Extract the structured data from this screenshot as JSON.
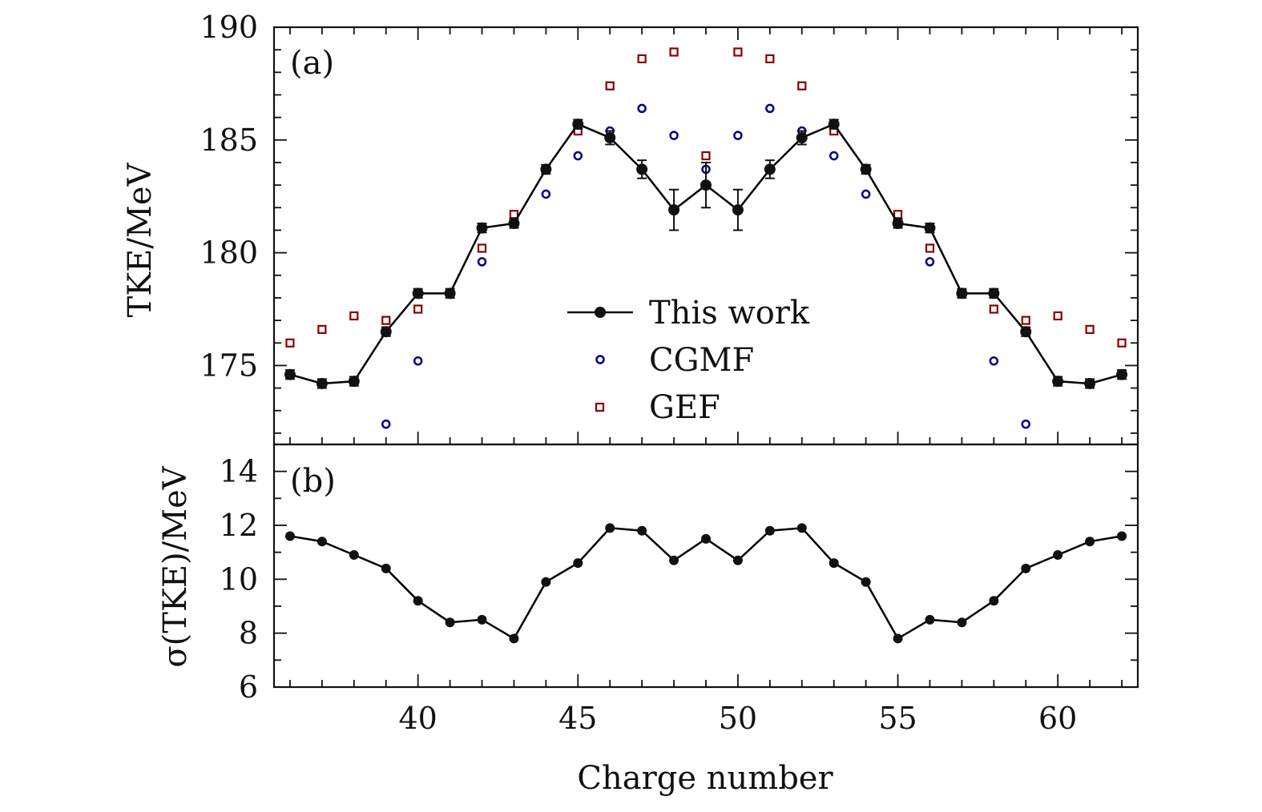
{
  "chart_data": [
    {
      "panel": "(a)",
      "type": "scatter",
      "xlabel": "Charge number",
      "ylabel": "TKE/MeV",
      "xlim": [
        35.5,
        62.5
      ],
      "ylim": [
        171.5,
        190
      ],
      "xticks": [
        40,
        45,
        50,
        55,
        60
      ],
      "xtick_labels": [
        "40",
        "45",
        "50",
        "55",
        "60"
      ],
      "yticks": [
        175,
        180,
        185,
        190
      ],
      "ytick_labels": [
        "175",
        "180",
        "185",
        "190"
      ],
      "legend_position": "center",
      "series": [
        {
          "name": "This work",
          "style": "line-marker",
          "color": "#000000",
          "x": [
            36,
            37,
            38,
            39,
            40,
            41,
            42,
            43,
            44,
            45,
            46,
            47,
            48,
            49,
            50,
            51,
            52,
            53,
            54,
            55,
            56,
            57,
            58,
            59,
            60,
            61,
            62
          ],
          "values": [
            174.6,
            174.2,
            174.3,
            176.5,
            178.2,
            178.2,
            181.1,
            181.3,
            183.7,
            185.7,
            185.1,
            183.7,
            181.9,
            183.0,
            181.9,
            183.7,
            185.1,
            185.7,
            183.7,
            181.3,
            181.1,
            178.2,
            178.2,
            176.5,
            174.3,
            174.2,
            174.6
          ],
          "errors": [
            0.2,
            0.2,
            0.2,
            0.2,
            0.2,
            0.2,
            0.2,
            0.2,
            0.2,
            0.2,
            0.3,
            0.4,
            0.9,
            1.0,
            0.9,
            0.4,
            0.3,
            0.2,
            0.2,
            0.2,
            0.2,
            0.2,
            0.2,
            0.2,
            0.2,
            0.2,
            0.2
          ]
        },
        {
          "name": "CGMF",
          "style": "open-circle",
          "color": "#00008b",
          "x": [
            39,
            40,
            41,
            42,
            44,
            45,
            46,
            47,
            48,
            49,
            50,
            51,
            52,
            53,
            54,
            56,
            57,
            58,
            59
          ],
          "values": [
            172.4,
            175.2,
            178.2,
            179.6,
            182.6,
            184.3,
            185.4,
            186.4,
            185.2,
            183.7,
            185.2,
            186.4,
            185.4,
            184.3,
            182.6,
            179.6,
            178.2,
            175.2,
            172.4
          ]
        },
        {
          "name": "GEF",
          "style": "open-square",
          "color": "#8b0000",
          "x": [
            36,
            37,
            38,
            39,
            40,
            41,
            42,
            43,
            44,
            45,
            46,
            47,
            48,
            49,
            50,
            51,
            52,
            53,
            54,
            55,
            56,
            57,
            58,
            59,
            60,
            61,
            62
          ],
          "values": [
            176.0,
            176.6,
            177.2,
            177.0,
            177.5,
            178.2,
            180.2,
            181.7,
            183.7,
            185.4,
            187.4,
            188.6,
            188.9,
            184.3,
            188.9,
            188.6,
            187.4,
            185.4,
            183.7,
            181.7,
            180.2,
            178.2,
            177.5,
            177.0,
            177.2,
            176.6,
            176.0
          ]
        }
      ]
    },
    {
      "panel": "(b)",
      "type": "line",
      "xlabel": "Charge number",
      "ylabel": "σ(TKE)/MeV",
      "xlim": [
        35.5,
        62.5
      ],
      "ylim": [
        6,
        15
      ],
      "xticks": [
        40,
        45,
        50,
        55,
        60
      ],
      "yticks": [
        6,
        8,
        10,
        12,
        14
      ],
      "ytick_labels": [
        "6",
        "8",
        "10",
        "12",
        "14"
      ],
      "series": [
        {
          "name": "This work",
          "color": "#000000",
          "x": [
            36,
            37,
            38,
            39,
            40,
            41,
            42,
            43,
            44,
            45,
            46,
            47,
            48,
            49,
            50,
            51,
            52,
            53,
            54,
            55,
            56,
            57,
            58,
            59,
            60,
            61,
            62
          ],
          "values": [
            11.6,
            11.4,
            10.9,
            10.4,
            9.2,
            8.4,
            8.5,
            7.8,
            9.9,
            10.6,
            11.9,
            11.8,
            10.7,
            11.5,
            10.7,
            11.8,
            11.9,
            10.6,
            9.9,
            7.8,
            8.5,
            8.4,
            9.2,
            10.4,
            10.9,
            11.4,
            11.6
          ]
        }
      ]
    }
  ]
}
